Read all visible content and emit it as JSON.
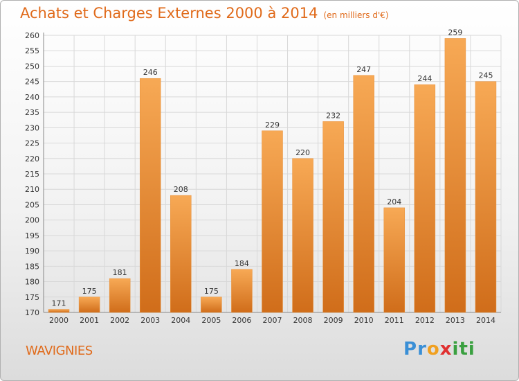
{
  "header": {
    "title": "Achats et Charges Externes 2000 à 2014",
    "unit": "(en milliers d'€)"
  },
  "place": "WAVIGNIES",
  "logo": {
    "text": "Proxiti",
    "letters": [
      {
        "char": "P",
        "color": "#3a8fd6"
      },
      {
        "char": "r",
        "color": "#3a8fd6"
      },
      {
        "char": "o",
        "color": "#f0a020"
      },
      {
        "char": "x",
        "color": "#e03030"
      },
      {
        "char": "i",
        "color": "#3aa040"
      },
      {
        "char": "t",
        "color": "#3aa040"
      },
      {
        "char": "i",
        "color": "#3aa040"
      }
    ]
  },
  "colors": {
    "accent": "#e06a1a",
    "bar_light": "#f5a24e",
    "bar_dark": "#d4711c",
    "grid": "#d8d8d8"
  },
  "chart_data": {
    "type": "bar",
    "title": "Achats et Charges Externes 2000 à 2014",
    "subtitle": "(en milliers d'€)",
    "xlabel": "",
    "ylabel": "",
    "categories": [
      "2000",
      "2001",
      "2002",
      "2003",
      "2004",
      "2005",
      "2006",
      "2007",
      "2008",
      "2009",
      "2010",
      "2011",
      "2012",
      "2013",
      "2014"
    ],
    "values": [
      171,
      175,
      181,
      246,
      208,
      175,
      184,
      229,
      220,
      232,
      247,
      204,
      244,
      259,
      245
    ],
    "ylim": [
      170,
      260
    ],
    "yticks": [
      170,
      175,
      180,
      185,
      190,
      195,
      200,
      205,
      210,
      215,
      220,
      225,
      230,
      235,
      240,
      245,
      250,
      255,
      260
    ],
    "grid": true,
    "legend": "none",
    "data_labels": true
  }
}
